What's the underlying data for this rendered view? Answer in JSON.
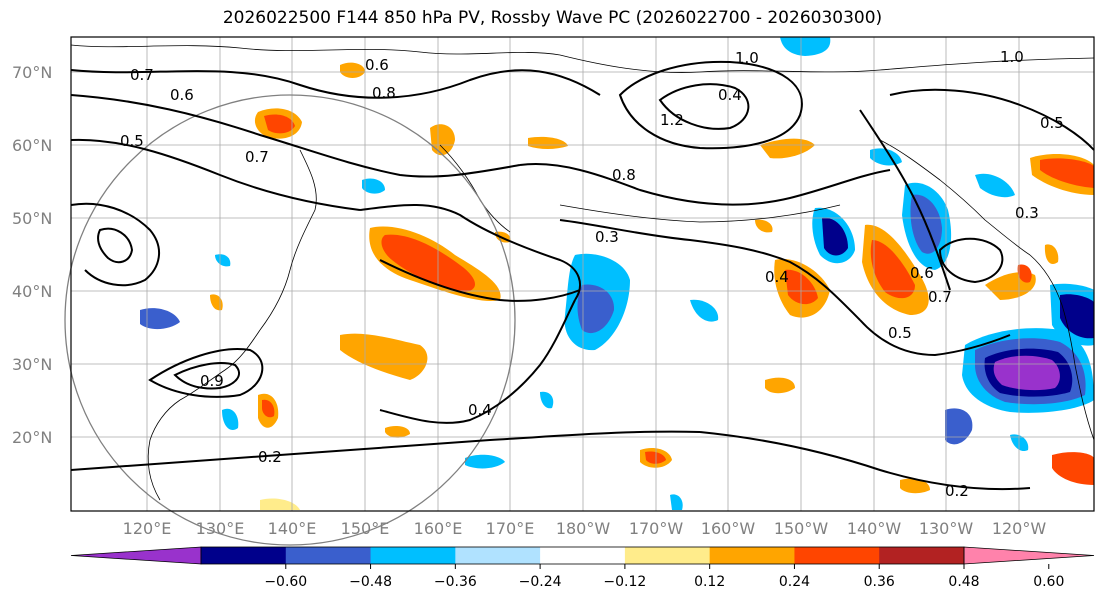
{
  "title": "2026022500 F144 850 hPa PV, Rossby Wave PC (2026022700 - 2026030300)",
  "lat_labels": [
    "70°N",
    "60°N",
    "50°N",
    "40°N",
    "30°N",
    "20°N"
  ],
  "lon_labels": [
    "120°E",
    "130°E",
    "140°E",
    "150°E",
    "160°E",
    "170°E",
    "180°W",
    "170°W",
    "160°W",
    "150°W",
    "140°W",
    "130°W",
    "120°W"
  ],
  "contour_labels": [
    "0.6",
    "0.8",
    "1.0",
    "1.0",
    "0.7",
    "0.6",
    "0.5",
    "0.7",
    "0.8",
    "0.3",
    "0.4",
    "0.4",
    "0.2",
    "0.2",
    "0.5",
    "0.6",
    "0.7",
    "0.3",
    "0.5",
    "1.2",
    "0.4",
    "0.9"
  ],
  "colorbar": {
    "ticks": [
      "−0.60",
      "−0.48",
      "−0.36",
      "−0.24",
      "−0.12",
      "0.12",
      "0.24",
      "0.36",
      "0.48",
      "0.60"
    ],
    "colors": [
      "#9932cc",
      "#00008b",
      "#3a5fcd",
      "#00bfff",
      "#b0e2ff",
      "#ffffff",
      "#ffec8b",
      "#ffa500",
      "#ff4500",
      "#b22222",
      "#ff82ab"
    ]
  }
}
